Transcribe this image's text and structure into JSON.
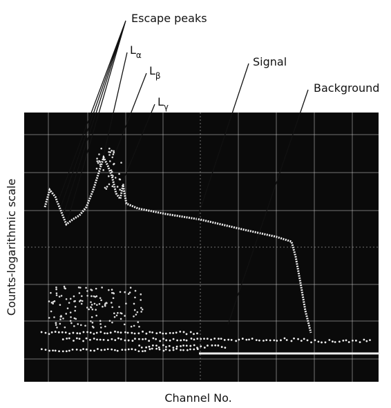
{
  "annotations": {
    "escape_peaks": "Escape peaks",
    "l_alpha": {
      "main": "L",
      "sub": "α"
    },
    "l_beta": {
      "main": "L",
      "sub": "β"
    },
    "l_gamma": {
      "main": "L",
      "sub": "γ"
    },
    "signal": "Signal",
    "background": "Background"
  },
  "axes": {
    "x_label": "Channel No.",
    "y_label": "Counts-logarithmic scale"
  }
}
